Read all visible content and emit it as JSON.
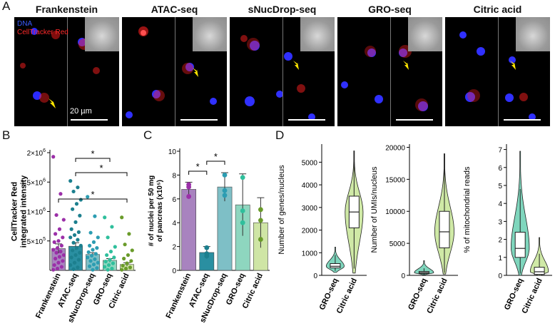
{
  "figure": {
    "panel_labels": [
      "A",
      "B",
      "C",
      "D"
    ],
    "panel_a": {
      "titles": [
        "Frankenstein",
        "ATAC-seq",
        "sNucDrop-seq",
        "GRO-seq",
        "Citric acid"
      ],
      "legend": {
        "dna": "DNA",
        "red": "CellTracker Red"
      },
      "scale_label": "20 µm"
    },
    "colors": {
      "frankenstein": "#a883bf",
      "atac": "#2a8fa1",
      "snuc": "#7ebfc6",
      "gro": "#8ed6bf",
      "citric": "#cfe5a5",
      "dot_frank": "#9b2fa8",
      "dot_atac": "#1c7f8e",
      "dot_snuc": "#2c9db2",
      "dot_gro": "#2fbf9c",
      "dot_citric": "#6a9b2a",
      "violin_gro": "#7fd6bd",
      "violin_citric": "#cfe9a6"
    }
  },
  "chart_data": [
    {
      "type": "bar",
      "panel": "B",
      "ylabel": "CellTracker Red integrated intensity",
      "categories": [
        "Frankenstein",
        "ATAC-seq",
        "sNucDrop-seq",
        "GRO-seq",
        "Citric acid"
      ],
      "values": [
        370000,
        410000,
        270000,
        170000,
        100000
      ],
      "errors": [
        80000,
        60000,
        30000,
        30000,
        30000
      ],
      "ylim": [
        0,
        2000000
      ],
      "yticks": [
        500000,
        1000000,
        1500000,
        2000000
      ],
      "ytick_labels": [
        {
          "base": "5×10",
          "exp": "5"
        },
        {
          "base": "1×10",
          "exp": "6"
        },
        {
          "base": "1.5×10",
          "exp": "6"
        },
        {
          "base": "2×10",
          "exp": "6"
        }
      ],
      "points": [
        [
          1930000,
          1300000,
          940000,
          860000,
          700000,
          620000,
          560000,
          500000,
          480000,
          420000,
          380000,
          350000,
          320000,
          300000,
          260000,
          230000,
          200000,
          160000,
          130000,
          90000,
          60000,
          30000,
          10000
        ],
        [
          1520000,
          1410000,
          1340000,
          1200000,
          1130000,
          1040000,
          930000,
          820000,
          700000,
          650000,
          600000,
          560000,
          520000,
          470000,
          420000,
          380000,
          340000,
          300000,
          260000,
          220000,
          180000,
          130000,
          90000,
          50000,
          20000
        ],
        [
          1250000,
          920000,
          640000,
          560000,
          480000,
          420000,
          380000,
          350000,
          310000,
          280000,
          250000,
          220000,
          190000,
          160000,
          130000,
          100000,
          70000,
          40000,
          10000
        ],
        [
          900000,
          740000,
          560000,
          400000,
          320000,
          260000,
          220000,
          180000,
          150000,
          120000,
          90000,
          60000,
          30000,
          10000
        ],
        [
          900000,
          620000,
          440000,
          340000,
          260000,
          200000,
          160000,
          120000,
          80000,
          50000,
          30000,
          10000
        ]
      ],
      "significance": [
        {
          "from": 1,
          "to": 3,
          "label": "*"
        },
        {
          "from": 1,
          "to": 4,
          "label": "*"
        },
        {
          "from": 0,
          "to": 4,
          "label": "*"
        }
      ]
    },
    {
      "type": "bar",
      "panel": "C",
      "ylabel": "# of nuclei per 50 mg of pancreas (x10⁵)",
      "categories": [
        "Frankenstein",
        "ATAC-seq",
        "sNucDrop-seq",
        "GRO-seq",
        "Citric acid"
      ],
      "values": [
        6.8,
        1.5,
        7.0,
        5.5,
        4.0
      ],
      "errors": [
        0.6,
        0.5,
        1.2,
        2.6,
        2.1
      ],
      "ylim": [
        0,
        10
      ],
      "yticks": [
        0,
        2,
        4,
        6,
        8,
        10
      ],
      "points": [
        [
          7.2,
          6.2,
          7.0
        ],
        [
          1.9,
          1.4,
          1.2
        ],
        [
          8.0,
          6.7,
          6.3
        ],
        [
          7.8,
          4.0,
          5.0
        ],
        [
          5.1,
          2.6,
          4.2
        ]
      ],
      "significance": [
        {
          "from": 0,
          "to": 1,
          "label": "*"
        },
        {
          "from": 1,
          "to": 2,
          "label": "*"
        }
      ]
    },
    {
      "type": "violin",
      "panel": "D1",
      "ylabel": "Number of genes/nucleus",
      "categories": [
        "GRO-seq",
        "Citric acid"
      ],
      "ylim": [
        0,
        5800
      ],
      "yticks": [
        0,
        1000,
        2000,
        3000,
        4000,
        5000
      ],
      "box": [
        {
          "q1": 330,
          "median": 400,
          "q3": 520,
          "lo": 200,
          "hi": 900
        },
        {
          "q1": 2100,
          "median": 2800,
          "q3": 3500,
          "lo": 300,
          "hi": 5500
        }
      ],
      "range": [
        [
          130,
          1250
        ],
        [
          100,
          5500
        ]
      ]
    },
    {
      "type": "violin",
      "panel": "D2",
      "ylabel": "Number of UMIs/nucleus",
      "categories": [
        "GRO-seq",
        "Citric acid"
      ],
      "ylim": [
        0,
        20500
      ],
      "yticks": [
        0,
        5000,
        10000,
        15000,
        20000
      ],
      "box": [
        {
          "q1": 300,
          "median": 420,
          "q3": 600,
          "lo": 150,
          "hi": 1100
        },
        {
          "q1": 4300,
          "median": 6800,
          "q3": 10000,
          "lo": 400,
          "hi": 19000
        }
      ],
      "range": [
        [
          100,
          2300
        ],
        [
          200,
          19000
        ]
      ]
    },
    {
      "type": "violin",
      "panel": "D3",
      "ylabel": "% of mitochondrial reads",
      "categories": [
        "GRO-seq",
        "Citric acid"
      ],
      "ylim": [
        0,
        7.3
      ],
      "yticks": [
        0,
        1,
        2,
        3,
        4,
        5,
        6,
        7
      ],
      "box": [
        {
          "q1": 1.0,
          "median": 1.5,
          "q3": 2.4,
          "lo": 0.1,
          "hi": 4.8
        },
        {
          "q1": 0.05,
          "median": 0.2,
          "q3": 0.45,
          "lo": 0,
          "hi": 1.2
        }
      ],
      "range": [
        [
          0,
          6.9
        ],
        [
          0,
          2.1
        ]
      ]
    }
  ]
}
